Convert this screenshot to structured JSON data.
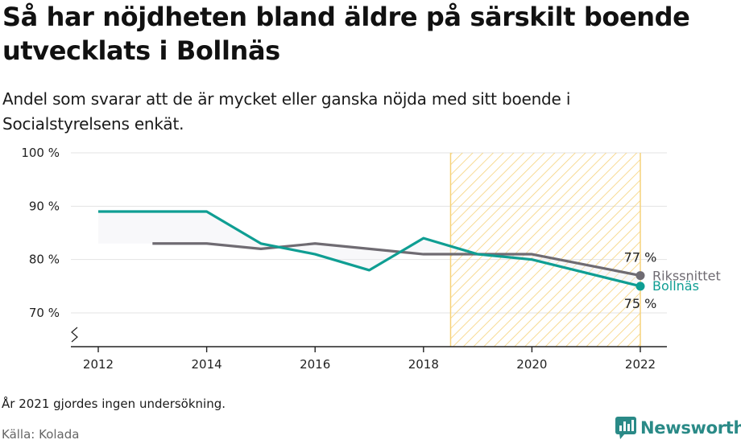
{
  "title": "Så har nöjdheten bland äldre på särskilt boende utvecklats i Bollnäs",
  "subtitle": "Andel som svarar att de är mycket eller ganska nöjda med sitt boende i Socialstyrelsens enkät.",
  "note": "År 2021 gjordes ingen undersökning.",
  "source": "Källa: Kolada",
  "brand": {
    "name": "Newsworthy",
    "icon": "newsworthy-chart-bubble-icon"
  },
  "colors": {
    "bollnas": "#0f9e93",
    "riks": "#6f6b72",
    "highlight": "#f6d27a",
    "grid": "#e3e3e3",
    "axis": "#222222"
  },
  "chart_data": {
    "type": "line",
    "x_ticks": [
      "2012",
      "2014",
      "2016",
      "2018",
      "2020",
      "2022"
    ],
    "y_ticks": [
      "70 %",
      "80 %",
      "90 %",
      "100 %"
    ],
    "xlim": [
      2012,
      2022
    ],
    "ylim": [
      65,
      100
    ],
    "y_axis_break": true,
    "grid": true,
    "highlight_range": [
      2018.5,
      2022
    ],
    "series": [
      {
        "name": "Bollnäs",
        "color": "#0f9e93",
        "end_label": "75 %",
        "points": [
          [
            2012,
            89
          ],
          [
            2013,
            89
          ],
          [
            2014,
            89
          ],
          [
            2015,
            83
          ],
          [
            2016,
            81
          ],
          [
            2017,
            78
          ],
          [
            2018,
            84
          ],
          [
            2019,
            81
          ],
          [
            2020,
            80
          ],
          [
            2022,
            75
          ]
        ]
      },
      {
        "name": "Rikssnittet",
        "color": "#6f6b72",
        "end_label": "77 %",
        "points": [
          [
            2013,
            83
          ],
          [
            2014,
            83
          ],
          [
            2015,
            82
          ],
          [
            2016,
            83
          ],
          [
            2017,
            82
          ],
          [
            2018,
            81
          ],
          [
            2019,
            81
          ],
          [
            2020,
            81
          ],
          [
            2022,
            77
          ]
        ]
      }
    ]
  }
}
